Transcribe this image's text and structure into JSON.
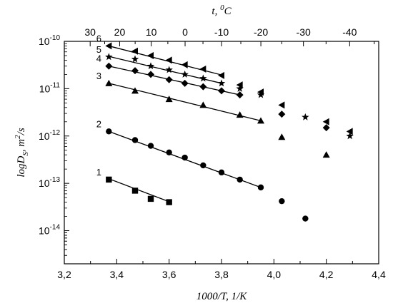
{
  "chart_data": {
    "type": "scatter",
    "xlabel": "1000/T, 1/K",
    "ylabel_base": "logD",
    "ylabel_sub": "S",
    "ylabel_rest": ", m",
    "ylabel_sup": "2",
    "ylabel_end": "/s",
    "top_xlabel_base": "t, ",
    "top_xlabel_sup": "0",
    "top_xlabel_end": "C",
    "xlim": [
      3.2,
      4.4
    ],
    "ylim_log10": [
      -14.7,
      -10
    ],
    "y_scale": "log",
    "x_ticks": [
      3.2,
      3.4,
      3.6,
      3.8,
      4.0,
      4.2,
      4.4
    ],
    "x_tick_labels": [
      "3,2",
      "3,4",
      "3,6",
      "3,8",
      "4,0",
      "4,2",
      "4,4"
    ],
    "y_ticks_exp": [
      -14,
      -13,
      -12,
      -11,
      -10
    ],
    "y_tick_base": "10",
    "top_ticks_celsius": [
      30,
      20,
      10,
      0,
      -10,
      -20,
      -30,
      -40
    ],
    "top_tick_labels": [
      "30",
      "20",
      "10",
      "0",
      "-10",
      "-20",
      "-30",
      "-40"
    ],
    "series": [
      {
        "name": "1",
        "marker": "square",
        "x": [
          3.37,
          3.47,
          3.53,
          3.6
        ],
        "y": [
          1.2e-13,
          7e-14,
          4.7e-14,
          4e-14
        ],
        "fit": [
          [
            3.37,
            1.25e-13
          ],
          [
            3.6,
            4.1e-14
          ]
        ]
      },
      {
        "name": "2",
        "marker": "circle",
        "x": [
          3.37,
          3.47,
          3.53,
          3.6,
          3.66,
          3.73,
          3.8,
          3.87,
          3.95,
          4.03,
          4.12
        ],
        "y": [
          1.25e-12,
          8.2e-13,
          6.2e-13,
          4.5e-13,
          3.5e-13,
          2.4e-13,
          1.7e-13,
          1.2e-13,
          8.2e-14,
          4.2e-14,
          1.8e-14
        ],
        "fit": [
          [
            3.37,
            1.25e-12
          ],
          [
            3.95,
            8.2e-14
          ]
        ]
      },
      {
        "name": "3",
        "marker": "triangle-up",
        "x": [
          3.37,
          3.47,
          3.6,
          3.73,
          3.87,
          3.95,
          4.03,
          4.2
        ],
        "y": [
          1.3e-11,
          9e-12,
          6e-12,
          4.5e-12,
          2.8e-12,
          2.1e-12,
          9.5e-13,
          4e-13
        ],
        "fit": [
          [
            3.37,
            1.3e-11
          ],
          [
            3.95,
            2.1e-12
          ]
        ]
      },
      {
        "name": "4",
        "marker": "diamond",
        "x": [
          3.37,
          3.47,
          3.53,
          3.6,
          3.66,
          3.73,
          3.8,
          3.87,
          4.03,
          4.2
        ],
        "y": [
          3e-11,
          2.4e-11,
          2e-11,
          1.55e-11,
          1.3e-11,
          1.1e-11,
          9e-12,
          7.4e-12,
          2.9e-12,
          1.5e-12
        ],
        "fit": [
          [
            3.37,
            3e-11
          ],
          [
            3.87,
            7.4e-12
          ]
        ]
      },
      {
        "name": "5",
        "marker": "star",
        "x": [
          3.37,
          3.47,
          3.53,
          3.6,
          3.66,
          3.73,
          3.8,
          3.87,
          3.95,
          4.12,
          4.29
        ],
        "y": [
          4.7e-11,
          4.2e-11,
          3e-11,
          2.5e-11,
          2e-11,
          1.65e-11,
          1.3e-11,
          1e-11,
          7.4e-12,
          2.5e-12,
          1e-12
        ],
        "fit": [
          [
            3.37,
            4.8e-11
          ],
          [
            3.8,
            1.3e-11
          ]
        ]
      },
      {
        "name": "6",
        "marker": "triangle-left",
        "x": [
          3.37,
          3.47,
          3.53,
          3.6,
          3.66,
          3.73,
          3.8,
          3.87,
          3.95,
          4.03,
          4.2,
          4.29
        ],
        "y": [
          8e-11,
          6.2e-11,
          5e-11,
          4e-11,
          3.2e-11,
          2.6e-11,
          1.9e-11,
          1.2e-11,
          8.5e-12,
          4.5e-12,
          2e-12,
          1.25e-12
        ],
        "fit": [
          [
            3.37,
            8e-11
          ],
          [
            3.8,
            1.95e-11
          ]
        ]
      }
    ]
  }
}
